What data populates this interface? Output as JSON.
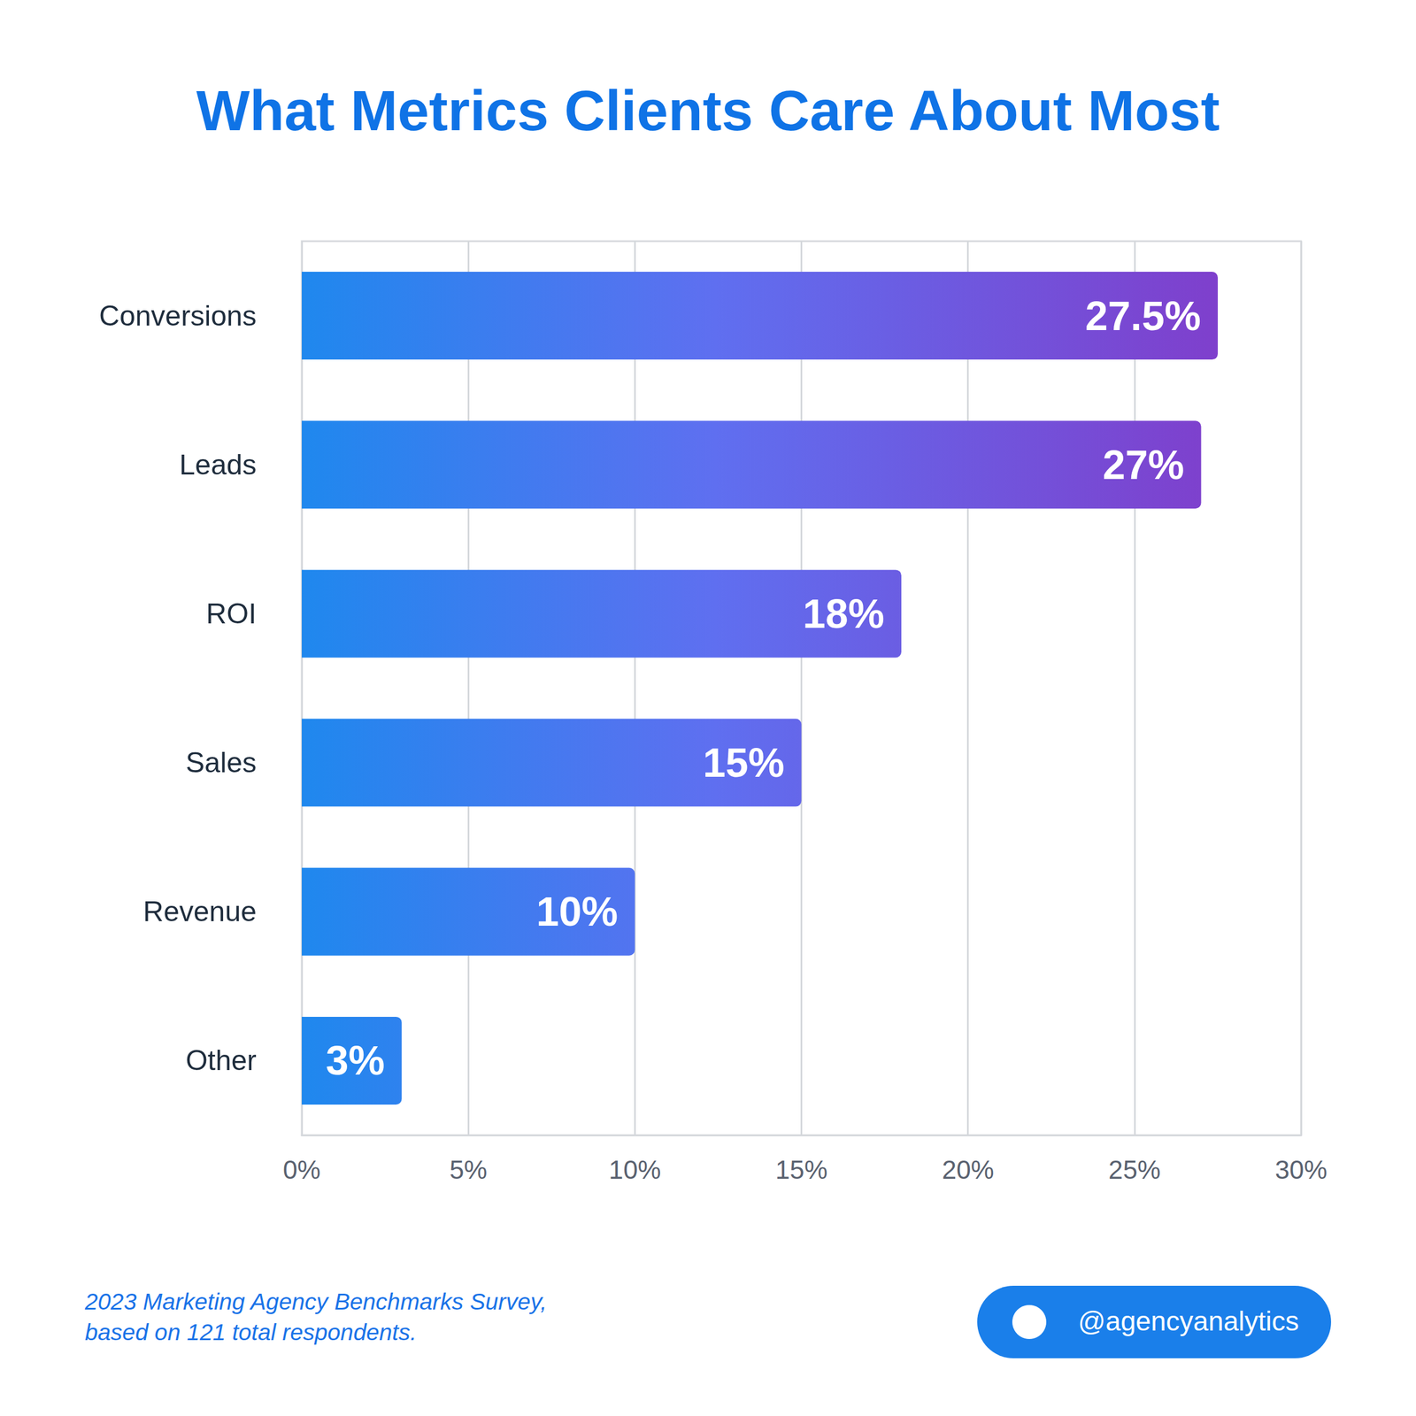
{
  "chart_data": {
    "type": "bar",
    "orientation": "horizontal",
    "title": "What Metrics Clients Care About Most",
    "categories": [
      "Conversions",
      "Leads",
      "ROI",
      "Sales",
      "Revenue",
      "Other"
    ],
    "values": [
      27.5,
      27,
      18,
      15,
      10,
      3
    ],
    "value_labels": [
      "27.5%",
      "27%",
      "18%",
      "15%",
      "10%",
      "3%"
    ],
    "data_labels": true,
    "color": "#1f88ee",
    "xlim": [
      0,
      30
    ],
    "xticks": [
      {
        "value": 0,
        "label": "0%"
      },
      {
        "value": 5,
        "label": "5%"
      },
      {
        "value": 10,
        "label": "10%"
      },
      {
        "value": 15,
        "label": "15%"
      },
      {
        "value": 20,
        "label": "20%"
      },
      {
        "value": 25,
        "label": "25%"
      },
      {
        "value": 30,
        "label": "30%"
      }
    ],
    "grid": true,
    "source": [
      "2023 Marketing Agency Benchmarks Survey,",
      "based on 121 total respondents."
    ],
    "badge": "@agencyanalytics"
  }
}
